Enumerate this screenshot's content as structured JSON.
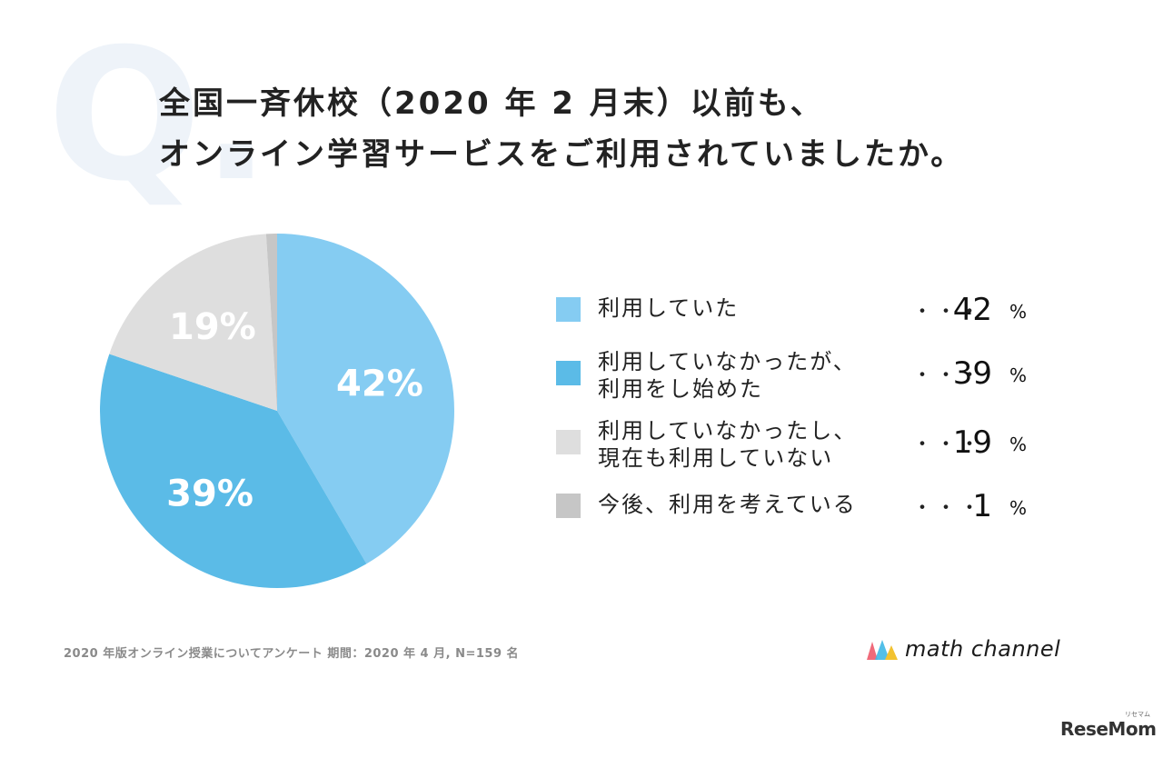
{
  "question_mark": "Q.",
  "title": {
    "line1": "全国一斉休校（2020 年 2 月末）以前も、",
    "line2": "オンライン学習サービスをご利用されていましたか。"
  },
  "chart_data": {
    "type": "pie",
    "slices": [
      {
        "label": "利用していた",
        "value": 42,
        "color": "#85ccf2",
        "data_label": "42%"
      },
      {
        "label": "利用していなかったが、利用をし始めた",
        "value": 39,
        "color": "#5bbbe7",
        "data_label": "39%"
      },
      {
        "label": "利用していなかったし、現在も利用していない",
        "value": 19,
        "color": "#dedede",
        "data_label": "19%"
      },
      {
        "label": "今後、利用を考えている",
        "value": 1,
        "color": "#c6c6c6",
        "data_label": ""
      }
    ]
  },
  "legend": [
    {
      "line1": "利用していた",
      "line2": "",
      "dots": "・・・",
      "pct": "42",
      "unit": "%",
      "color": "#85ccf2"
    },
    {
      "line1": "利用していなかったが、",
      "line2": "利用をし始めた",
      "dots": "・・・",
      "pct": "39",
      "unit": "%",
      "color": "#5bbbe7"
    },
    {
      "line1": "利用していなかったし、",
      "line2": "現在も利用していない",
      "dots": "・・・",
      "pct": "19",
      "unit": "%",
      "color": "#dedede"
    },
    {
      "line1": "今後、利用を考えている",
      "line2": "",
      "dots": "・・・",
      "pct": "1",
      "unit": "%",
      "color": "#c6c6c6"
    }
  ],
  "footnote": "2020 年版オンライン授業についてアンケート 期間：2020 年 4 月, N=159 名",
  "logo": {
    "text": "math channel",
    "colors": [
      "#f06a7a",
      "#3fb8e6",
      "#f2c230"
    ]
  },
  "watermark": {
    "text": "ReseMom",
    "small": "リセマム"
  }
}
